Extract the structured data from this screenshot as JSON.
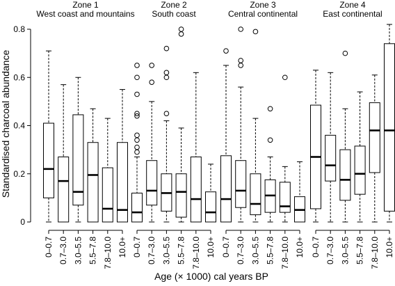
{
  "chart_data": {
    "type": "boxplot",
    "ylabel": "Standardised charcoal abundance",
    "xlabel": "Age (× 1000) cal years BP",
    "ylim": [
      0,
      0.8
    ],
    "yticks": [
      0,
      0.2,
      0.4,
      0.6,
      0.8
    ],
    "ytick_labels": [
      "0",
      "0.2",
      "0.4",
      "0.6",
      "0.8"
    ],
    "categories": [
      "0–0.7",
      "0.7–3.0",
      "3.0–5.5",
      "5.5–7.8",
      "7.8–10.0",
      "10.0+"
    ],
    "groups": [
      {
        "zone": "Zone 1",
        "region": "West coast and mountains",
        "boxes": [
          {
            "min": 0.0,
            "q1": 0.1,
            "median": 0.22,
            "q3": 0.41,
            "max": 0.71,
            "outliers": []
          },
          {
            "min": 0.0,
            "q1": 0.0,
            "median": 0.17,
            "q3": 0.27,
            "max": 0.57,
            "outliers": []
          },
          {
            "min": 0.0,
            "q1": 0.07,
            "median": 0.125,
            "q3": 0.445,
            "max": 0.6,
            "outliers": []
          },
          {
            "min": 0.0,
            "q1": 0.0,
            "median": 0.195,
            "q3": 0.33,
            "max": 0.47,
            "outliers": []
          },
          {
            "min": 0.0,
            "q1": 0.0,
            "median": 0.055,
            "q3": 0.225,
            "max": 0.43,
            "outliers": []
          },
          {
            "min": 0.0,
            "q1": 0.0,
            "median": 0.05,
            "q3": 0.33,
            "max": 0.55,
            "outliers": []
          }
        ]
      },
      {
        "zone": "Zone 2",
        "region": "South coast",
        "boxes": [
          {
            "min": 0.0,
            "q1": 0.0,
            "median": 0.04,
            "q3": 0.12,
            "max": 0.27,
            "outliers": [
              0.29,
              0.31,
              0.34,
              0.36,
              0.44,
              0.45,
              0.53,
              0.6,
              0.65
            ]
          },
          {
            "min": 0.0,
            "q1": 0.07,
            "median": 0.13,
            "q3": 0.255,
            "max": 0.5,
            "outliers": [
              0.58,
              0.65
            ]
          },
          {
            "min": 0.0,
            "q1": 0.045,
            "median": 0.12,
            "q3": 0.2,
            "max": 0.42,
            "outliers": [
              0.45,
              0.6,
              0.62,
              0.72
            ]
          },
          {
            "min": 0.0,
            "q1": 0.02,
            "median": 0.125,
            "q3": 0.2,
            "max": 0.39,
            "outliers": [
              0.78,
              0.8
            ]
          },
          {
            "min": 0.0,
            "q1": 0.0,
            "median": 0.095,
            "q3": 0.27,
            "max": 0.62,
            "outliers": []
          },
          {
            "min": 0.0,
            "q1": 0.0,
            "median": 0.04,
            "q3": 0.125,
            "max": 0.24,
            "outliers": []
          }
        ]
      },
      {
        "zone": "Zone 3",
        "region": "Central continental",
        "boxes": [
          {
            "min": 0.0,
            "q1": 0.0,
            "median": 0.095,
            "q3": 0.275,
            "max": 0.65,
            "outliers": [
              0.71
            ]
          },
          {
            "min": 0.0,
            "q1": 0.06,
            "median": 0.13,
            "q3": 0.255,
            "max": 0.56,
            "outliers": [
              0.65,
              0.67,
              0.8
            ]
          },
          {
            "min": 0.0,
            "q1": 0.03,
            "median": 0.075,
            "q3": 0.2,
            "max": 0.43,
            "outliers": [
              0.79
            ]
          },
          {
            "min": 0.0,
            "q1": 0.04,
            "median": 0.11,
            "q3": 0.175,
            "max": 0.27,
            "outliers": [
              0.34,
              0.47
            ]
          },
          {
            "min": 0.0,
            "q1": 0.04,
            "median": 0.065,
            "q3": 0.165,
            "max": 0.23,
            "outliers": [
              0.6
            ]
          },
          {
            "min": 0.0,
            "q1": 0.0,
            "median": 0.05,
            "q3": 0.105,
            "max": 0.25,
            "outliers": []
          }
        ]
      },
      {
        "zone": "Zone 4",
        "region": "East continental",
        "boxes": [
          {
            "min": 0.0,
            "q1": 0.055,
            "median": 0.27,
            "q3": 0.485,
            "max": 0.63,
            "outliers": []
          },
          {
            "min": 0.0,
            "q1": 0.17,
            "median": 0.235,
            "q3": 0.36,
            "max": 0.62,
            "outliers": []
          },
          {
            "min": 0.0,
            "q1": 0.09,
            "median": 0.175,
            "q3": 0.3,
            "max": 0.47,
            "outliers": [
              0.7
            ]
          },
          {
            "min": 0.0,
            "q1": 0.115,
            "median": 0.2,
            "q3": 0.315,
            "max": 0.54,
            "outliers": []
          },
          {
            "min": 0.0,
            "q1": 0.205,
            "median": 0.38,
            "q3": 0.495,
            "max": 0.61,
            "outliers": []
          },
          {
            "min": 0.0,
            "q1": 0.045,
            "median": 0.38,
            "q3": 0.74,
            "max": 0.82,
            "outliers": []
          }
        ]
      }
    ]
  }
}
